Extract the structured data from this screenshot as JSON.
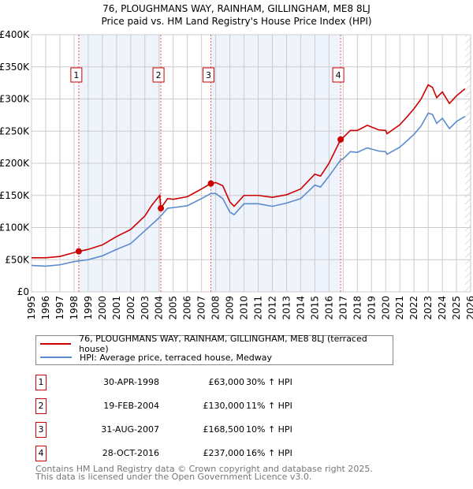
{
  "chart_data": {
    "type": "line",
    "title": "76, PLOUGHMANS WAY, RAINHAM, GILLINGHAM, ME8 8LJ",
    "subtitle": "Price paid vs. HM Land Registry's House Price Index (HPI)",
    "xlim": [
      1995,
      2026
    ],
    "ylim": [
      0,
      400000
    ],
    "x_ticks": [
      "1995",
      "1996",
      "1997",
      "1998",
      "1999",
      "2000",
      "2001",
      "2002",
      "2003",
      "2004",
      "2005",
      "2006",
      "2007",
      "2008",
      "2009",
      "2010",
      "2011",
      "2012",
      "2013",
      "2014",
      "2015",
      "2016",
      "2017",
      "2018",
      "2019",
      "2020",
      "2021",
      "2022",
      "2023",
      "2024",
      "2025",
      "2026"
    ],
    "y_ticks": [
      {
        "v": 0,
        "label": "£0"
      },
      {
        "v": 50000,
        "label": "£50K"
      },
      {
        "v": 100000,
        "label": "£100K"
      },
      {
        "v": 150000,
        "label": "£150K"
      },
      {
        "v": 200000,
        "label": "£200K"
      },
      {
        "v": 250000,
        "label": "£250K"
      },
      {
        "v": 300000,
        "label": "£300K"
      },
      {
        "v": 350000,
        "label": "£350K"
      },
      {
        "v": 400000,
        "label": "£400K"
      }
    ],
    "grid": true,
    "shaded_ranges": [
      [
        1998.33,
        2004.13
      ],
      [
        2007.66,
        2016.82
      ]
    ],
    "forecast_hatch_from": 2025.6,
    "series": [
      {
        "name": "76, PLOUGHMANS WAY, RAINHAM, GILLINGHAM, ME8 8LJ (terraced house)",
        "color": "#cc0000",
        "points": [
          [
            1995,
            53000
          ],
          [
            1996,
            53000
          ],
          [
            1997,
            55000
          ],
          [
            1998,
            61000
          ],
          [
            1998.33,
            63000
          ],
          [
            1999,
            66000
          ],
          [
            2000,
            73000
          ],
          [
            2001,
            86000
          ],
          [
            2002,
            97000
          ],
          [
            2003,
            118000
          ],
          [
            2003.5,
            135000
          ],
          [
            2004.05,
            150000
          ],
          [
            2004.13,
            130000
          ],
          [
            2004.6,
            145000
          ],
          [
            2005,
            144000
          ],
          [
            2006,
            148000
          ],
          [
            2007,
            160000
          ],
          [
            2007.66,
            168500
          ],
          [
            2008,
            170000
          ],
          [
            2008.5,
            165000
          ],
          [
            2009,
            140000
          ],
          [
            2009.3,
            133000
          ],
          [
            2010,
            150000
          ],
          [
            2011,
            150000
          ],
          [
            2012,
            147000
          ],
          [
            2013,
            151000
          ],
          [
            2014,
            160000
          ],
          [
            2015,
            183000
          ],
          [
            2015.4,
            180000
          ],
          [
            2016,
            200000
          ],
          [
            2016.82,
            237000
          ],
          [
            2017,
            240000
          ],
          [
            2017.5,
            251000
          ],
          [
            2018,
            251000
          ],
          [
            2018.7,
            259000
          ],
          [
            2019.5,
            252000
          ],
          [
            2020,
            251000
          ],
          [
            2020.1,
            246000
          ],
          [
            2021,
            260000
          ],
          [
            2021.5,
            272000
          ],
          [
            2022,
            285000
          ],
          [
            2022.5,
            300000
          ],
          [
            2023,
            322000
          ],
          [
            2023.3,
            318000
          ],
          [
            2023.6,
            302000
          ],
          [
            2024,
            311000
          ],
          [
            2024.5,
            293000
          ],
          [
            2025,
            305000
          ],
          [
            2025.6,
            316000
          ]
        ]
      },
      {
        "name": "HPI: Average price, terraced house, Medway",
        "color": "#5b8bd0",
        "points": [
          [
            1995,
            41000
          ],
          [
            1996,
            40000
          ],
          [
            1997,
            42000
          ],
          [
            1998,
            47000
          ],
          [
            1999,
            50000
          ],
          [
            2000,
            56000
          ],
          [
            2001,
            66000
          ],
          [
            2002,
            75000
          ],
          [
            2003,
            95000
          ],
          [
            2004,
            115000
          ],
          [
            2004.6,
            130000
          ],
          [
            2005,
            131000
          ],
          [
            2006,
            134000
          ],
          [
            2007,
            145000
          ],
          [
            2007.66,
            153000
          ],
          [
            2008,
            153000
          ],
          [
            2008.5,
            145000
          ],
          [
            2009,
            124000
          ],
          [
            2009.3,
            120000
          ],
          [
            2010,
            137000
          ],
          [
            2011,
            137000
          ],
          [
            2012,
            133000
          ],
          [
            2013,
            138000
          ],
          [
            2014,
            145000
          ],
          [
            2015,
            166000
          ],
          [
            2015.4,
            163000
          ],
          [
            2016,
            180000
          ],
          [
            2016.82,
            205000
          ],
          [
            2017,
            207000
          ],
          [
            2017.5,
            218000
          ],
          [
            2018,
            217000
          ],
          [
            2018.7,
            224000
          ],
          [
            2019.5,
            219000
          ],
          [
            2020,
            218000
          ],
          [
            2020.1,
            214000
          ],
          [
            2021,
            225000
          ],
          [
            2021.5,
            235000
          ],
          [
            2022,
            245000
          ],
          [
            2022.5,
            258000
          ],
          [
            2023,
            278000
          ],
          [
            2023.3,
            276000
          ],
          [
            2023.6,
            262000
          ],
          [
            2024,
            270000
          ],
          [
            2024.5,
            254000
          ],
          [
            2025,
            265000
          ],
          [
            2025.6,
            273000
          ]
        ]
      }
    ],
    "sales": [
      {
        "n": "1",
        "x": 1998.33,
        "y": 63000,
        "date": "30-APR-1998",
        "price": "£63,000",
        "hpi": "30% ↑ HPI"
      },
      {
        "n": "2",
        "x": 2004.13,
        "y": 130000,
        "date": "19-FEB-2004",
        "price": "£130,000",
        "hpi": "11% ↑ HPI"
      },
      {
        "n": "3",
        "x": 2007.66,
        "y": 168500,
        "date": "31-AUG-2007",
        "price": "£168,500",
        "hpi": "10% ↑ HPI"
      },
      {
        "n": "4",
        "x": 2016.82,
        "y": 237000,
        "date": "28-OCT-2016",
        "price": "£237,000",
        "hpi": "16% ↑ HPI"
      }
    ]
  },
  "footer": {
    "line1": "Contains HM Land Registry data © Crown copyright and database right 2025.",
    "line2": "This data is licensed under the Open Government Licence v3.0."
  }
}
